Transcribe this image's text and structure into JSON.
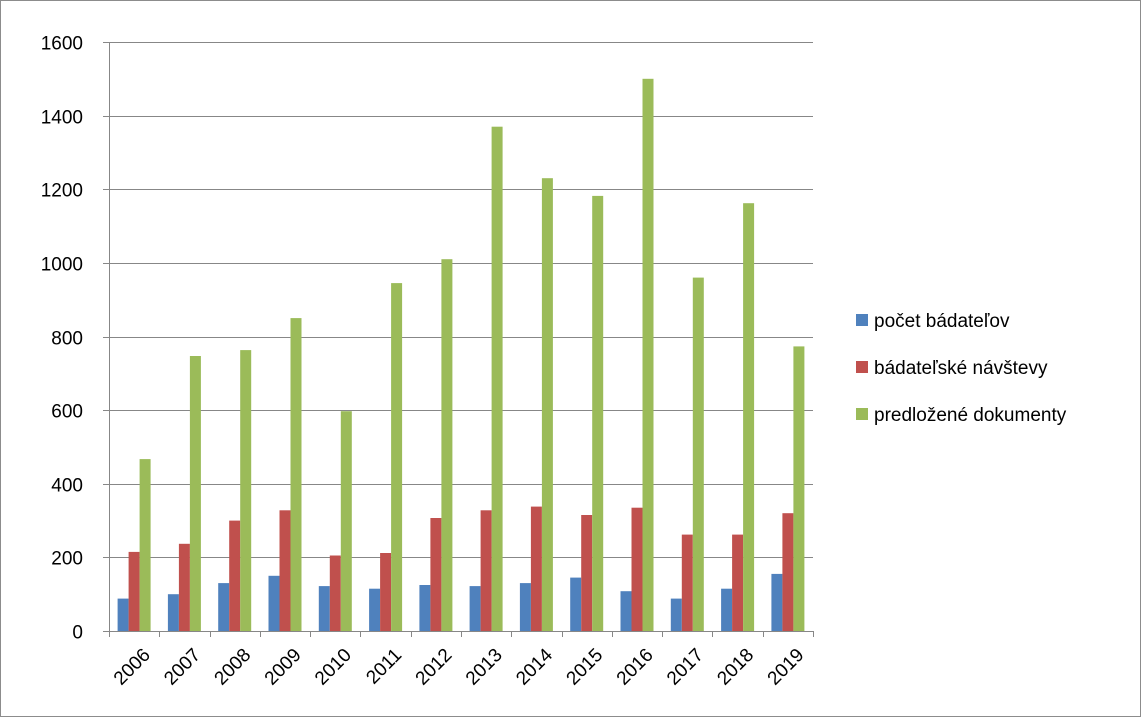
{
  "chart_data": {
    "type": "bar",
    "title": "",
    "xlabel": "",
    "ylabel": "",
    "ylim": [
      0,
      1600
    ],
    "yticks": [
      0,
      200,
      400,
      600,
      800,
      1000,
      1200,
      1400,
      1600
    ],
    "grid": true,
    "legend_position": "right",
    "categories": [
      "2006",
      "2007",
      "2008",
      "2009",
      "2010",
      "2011",
      "2012",
      "2013",
      "2014",
      "2015",
      "2016",
      "2017",
      "2018",
      "2019"
    ],
    "series": [
      {
        "name": "počet bádateľov",
        "color": "#4f81bd",
        "values": [
          88,
          100,
          130,
          150,
          122,
          115,
          125,
          122,
          130,
          145,
          108,
          88,
          115,
          155
        ]
      },
      {
        "name": "bádateľské návštevy",
        "color": "#c0504d",
        "values": [
          215,
          237,
          300,
          328,
          205,
          212,
          307,
          328,
          338,
          315,
          335,
          262,
          262,
          320
        ]
      },
      {
        "name": "predložené dokumenty",
        "color": "#9bbb59",
        "values": [
          467,
          747,
          763,
          850,
          597,
          945,
          1010,
          1370,
          1230,
          1182,
          1500,
          960,
          1162,
          773
        ]
      }
    ]
  }
}
